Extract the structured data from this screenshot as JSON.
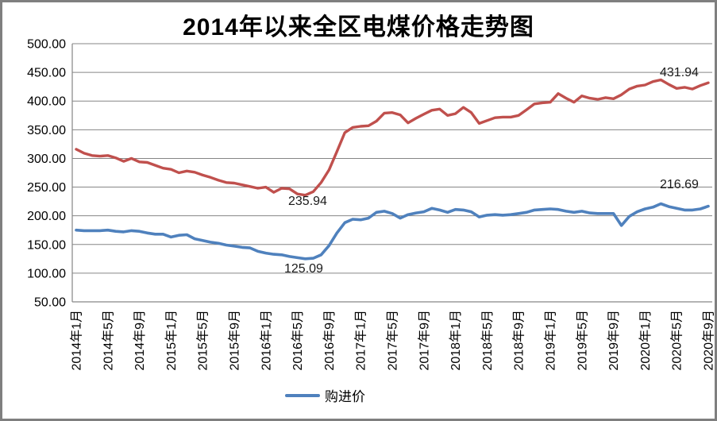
{
  "window": {
    "background": "#ffffff",
    "border_color": "#7f7f7f"
  },
  "chart_data": {
    "type": "line",
    "title": "2014年以来全区电煤价格走势图",
    "xlabel": "",
    "ylabel": "",
    "ylim": [
      50,
      500
    ],
    "ytick_step": 50,
    "ytick_labels": [
      "500.00",
      "450.00",
      "400.00",
      "350.00",
      "300.00",
      "250.00",
      "200.00",
      "150.00",
      "100.00",
      "50.00"
    ],
    "x_axis": {
      "n_points": 81,
      "start": "2014年1月",
      "end": "2020年9月",
      "tick_every": 4,
      "tick_labels": [
        "2014年1月",
        "2014年5月",
        "2014年9月",
        "2015年1月",
        "2015年5月",
        "2015年9月",
        "2016年1月",
        "2016年5月",
        "2016年9月",
        "2017年1月",
        "2017年5月",
        "2017年9月",
        "2018年1月",
        "2018年5月",
        "2018年9月",
        "2019年1月",
        "2019年5月",
        "2019年9月",
        "2020年1月",
        "2020年5月",
        "2020年9月"
      ],
      "tick_label_rotation_deg": -90
    },
    "grid": true,
    "gridline_color": "#868686",
    "axis_color": "#868686",
    "series": [
      {
        "key": "red-series",
        "legend_label": "",
        "color": "#c0504d",
        "stroke_width": 3.4,
        "values": [
          316,
          309,
          305,
          304,
          305,
          301,
          295,
          300,
          294,
          293,
          288,
          283,
          281,
          275,
          278,
          276,
          271,
          267,
          262,
          258,
          257,
          254,
          251,
          248,
          250,
          241,
          248,
          247,
          238,
          235.94,
          242,
          258,
          280,
          312,
          345,
          354,
          356,
          357,
          365,
          379,
          380,
          376,
          362,
          370,
          377,
          384,
          386,
          375,
          378,
          389,
          380,
          361,
          366,
          371,
          372,
          372,
          375,
          385,
          395,
          397,
          398,
          413,
          405,
          398,
          409,
          405,
          403,
          406,
          404,
          411,
          421,
          426,
          428,
          434,
          437,
          429,
          422,
          424,
          421,
          427,
          431.94
        ]
      },
      {
        "key": "blue-series",
        "legend_label": "购进价",
        "color": "#4f81bd",
        "stroke_width": 3.6,
        "values": [
          175,
          174,
          174,
          174,
          175,
          173,
          172,
          174,
          173,
          170,
          168,
          168,
          163,
          166,
          167,
          160,
          157,
          154,
          152,
          149,
          147,
          145,
          144,
          138,
          135,
          133,
          132,
          129,
          127,
          125.09,
          126,
          132,
          148,
          170,
          188,
          194,
          193,
          196,
          206,
          208,
          204,
          196,
          202,
          205,
          207,
          213,
          210,
          206,
          211,
          210,
          207,
          198,
          201,
          202,
          201,
          202,
          204,
          206,
          210,
          211,
          212,
          211,
          208,
          206,
          208,
          205,
          204,
          204,
          204,
          183,
          199,
          207,
          212,
          215,
          221,
          216,
          213,
          210,
          210,
          212,
          216.69
        ]
      }
    ],
    "annotations": [
      {
        "text": "431.94",
        "series": "red-series",
        "point_index": 80,
        "placement": "above-end"
      },
      {
        "text": "235.94",
        "series": "red-series",
        "point_index": 29,
        "placement": "below-min"
      },
      {
        "text": "216.69",
        "series": "blue-series",
        "point_index": 80,
        "placement": "above-end"
      },
      {
        "text": "125.09",
        "series": "blue-series",
        "point_index": 29,
        "placement": "below-min"
      }
    ],
    "legend": {
      "position": "bottom-center",
      "items": [
        {
          "label": "购进价",
          "color": "#4f81bd"
        }
      ]
    }
  }
}
